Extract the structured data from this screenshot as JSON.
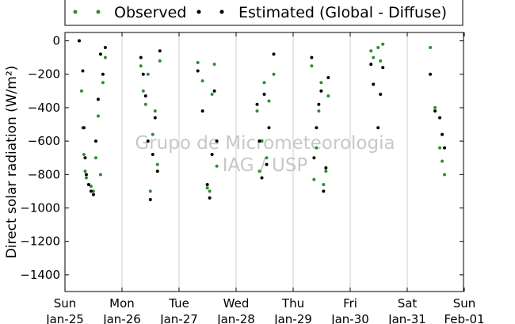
{
  "chart_data": {
    "type": "scatter",
    "title": "",
    "xlabel": "",
    "ylabel": "Direct solar radiation (W/m²)",
    "xlim": [
      "2015-01-25T00:00",
      "2015-02-01T00:00"
    ],
    "ylim": [
      -1500,
      50
    ],
    "yticks": [
      0,
      -200,
      -400,
      -600,
      -800,
      -1000,
      -1200,
      -1400
    ],
    "xtick_labels": [
      {
        "line1": "Sun",
        "line2": "Jan-25"
      },
      {
        "line1": "Mon",
        "line2": "Jan-26"
      },
      {
        "line1": "Tue",
        "line2": "Jan-27"
      },
      {
        "line1": "Wed",
        "line2": "Jan-28"
      },
      {
        "line1": "Thu",
        "line2": "Jan-29"
      },
      {
        "line1": "Fri",
        "line2": "Jan-30"
      },
      {
        "line1": "Sat",
        "line2": "Jan-31"
      },
      {
        "line1": "Sun",
        "line2": "Feb-01"
      }
    ],
    "grid": "vertical",
    "legend_position": "top",
    "watermark": [
      "Grupo de Micrometeorologia",
      "IAG / USP"
    ],
    "series": [
      {
        "name": "Observed",
        "color": "#2f8f2f",
        "marker": "dot",
        "points": [
          [
            "2015-01-25T06:00",
            0
          ],
          [
            "2015-01-25T07:00",
            -300
          ],
          [
            "2015-01-25T07:30",
            -520
          ],
          [
            "2015-01-25T08:00",
            -680
          ],
          [
            "2015-01-25T08:30",
            -780
          ],
          [
            "2015-01-25T09:00",
            -820
          ],
          [
            "2015-01-25T10:00",
            -860
          ],
          [
            "2015-01-25T11:00",
            -870
          ],
          [
            "2015-01-25T12:00",
            -900
          ],
          [
            "2015-01-25T13:00",
            -700
          ],
          [
            "2015-01-25T14:00",
            -450
          ],
          [
            "2015-01-25T15:00",
            -800
          ],
          [
            "2015-01-25T16:00",
            -250
          ],
          [
            "2015-01-25T17:00",
            -100
          ],
          [
            "2015-01-26T08:00",
            -150
          ],
          [
            "2015-01-26T09:00",
            -300
          ],
          [
            "2015-01-26T10:00",
            -380
          ],
          [
            "2015-01-26T11:00",
            -200
          ],
          [
            "2015-01-26T12:00",
            -900
          ],
          [
            "2015-01-26T13:00",
            -560
          ],
          [
            "2015-01-26T14:00",
            -420
          ],
          [
            "2015-01-26T15:00",
            -740
          ],
          [
            "2015-01-26T16:00",
            -120
          ],
          [
            "2015-01-27T08:00",
            -130
          ],
          [
            "2015-01-27T10:00",
            -240
          ],
          [
            "2015-01-27T12:00",
            -880
          ],
          [
            "2015-01-27T13:00",
            -900
          ],
          [
            "2015-01-27T14:00",
            -320
          ],
          [
            "2015-01-27T15:00",
            -140
          ],
          [
            "2015-01-27T16:00",
            -750
          ],
          [
            "2015-01-28T09:00",
            -420
          ],
          [
            "2015-01-28T10:00",
            -780
          ],
          [
            "2015-01-28T11:00",
            -600
          ],
          [
            "2015-01-28T12:00",
            -250
          ],
          [
            "2015-01-28T13:00",
            -700
          ],
          [
            "2015-01-28T14:00",
            -360
          ],
          [
            "2015-01-28T16:00",
            -200
          ],
          [
            "2015-01-29T08:00",
            -150
          ],
          [
            "2015-01-29T09:00",
            -830
          ],
          [
            "2015-01-29T10:00",
            -640
          ],
          [
            "2015-01-29T11:00",
            -420
          ],
          [
            "2015-01-29T12:00",
            -250
          ],
          [
            "2015-01-29T13:00",
            -860
          ],
          [
            "2015-01-29T14:00",
            -780
          ],
          [
            "2015-01-29T15:00",
            -330
          ],
          [
            "2015-01-30T09:00",
            -60
          ],
          [
            "2015-01-30T10:00",
            -100
          ],
          [
            "2015-01-30T12:00",
            -40
          ],
          [
            "2015-01-30T13:00",
            -120
          ],
          [
            "2015-01-30T14:00",
            -20
          ],
          [
            "2015-01-31T10:00",
            -40
          ],
          [
            "2015-01-31T12:00",
            -400
          ],
          [
            "2015-01-31T14:00",
            -640
          ],
          [
            "2015-01-31T15:00",
            -720
          ],
          [
            "2015-01-31T16:00",
            -800
          ]
        ]
      },
      {
        "name": "Estimated (Global - Diffuse)",
        "color": "#000000",
        "marker": "dot",
        "points": [
          [
            "2015-01-25T06:00",
            0
          ],
          [
            "2015-01-25T07:30",
            -180
          ],
          [
            "2015-01-25T08:00",
            -520
          ],
          [
            "2015-01-25T08:30",
            -700
          ],
          [
            "2015-01-25T09:00",
            -800
          ],
          [
            "2015-01-25T10:00",
            -860
          ],
          [
            "2015-01-25T11:00",
            -900
          ],
          [
            "2015-01-25T12:00",
            -920
          ],
          [
            "2015-01-25T13:00",
            -600
          ],
          [
            "2015-01-25T14:00",
            -350
          ],
          [
            "2015-01-25T15:00",
            -80
          ],
          [
            "2015-01-25T16:00",
            -200
          ],
          [
            "2015-01-25T17:00",
            -40
          ],
          [
            "2015-01-26T08:00",
            -100
          ],
          [
            "2015-01-26T09:00",
            -200
          ],
          [
            "2015-01-26T10:00",
            -330
          ],
          [
            "2015-01-26T11:00",
            -600
          ],
          [
            "2015-01-26T12:00",
            -950
          ],
          [
            "2015-01-26T13:00",
            -680
          ],
          [
            "2015-01-26T14:00",
            -460
          ],
          [
            "2015-01-26T15:00",
            -780
          ],
          [
            "2015-01-26T16:00",
            -60
          ],
          [
            "2015-01-27T08:00",
            -180
          ],
          [
            "2015-01-27T10:00",
            -420
          ],
          [
            "2015-01-27T12:00",
            -860
          ],
          [
            "2015-01-27T13:00",
            -940
          ],
          [
            "2015-01-27T14:00",
            -680
          ],
          [
            "2015-01-27T15:00",
            -300
          ],
          [
            "2015-01-27T16:00",
            -600
          ],
          [
            "2015-01-28T09:00",
            -380
          ],
          [
            "2015-01-28T10:00",
            -600
          ],
          [
            "2015-01-28T11:00",
            -820
          ],
          [
            "2015-01-28T12:00",
            -320
          ],
          [
            "2015-01-28T13:00",
            -740
          ],
          [
            "2015-01-28T14:00",
            -520
          ],
          [
            "2015-01-28T16:00",
            -80
          ],
          [
            "2015-01-29T08:00",
            -100
          ],
          [
            "2015-01-29T09:00",
            -700
          ],
          [
            "2015-01-29T10:00",
            -520
          ],
          [
            "2015-01-29T11:00",
            -380
          ],
          [
            "2015-01-29T12:00",
            -300
          ],
          [
            "2015-01-29T13:00",
            -900
          ],
          [
            "2015-01-29T14:00",
            -760
          ],
          [
            "2015-01-29T15:00",
            -220
          ],
          [
            "2015-01-30T09:00",
            -140
          ],
          [
            "2015-01-30T10:00",
            -260
          ],
          [
            "2015-01-30T12:00",
            -520
          ],
          [
            "2015-01-30T13:00",
            -320
          ],
          [
            "2015-01-30T14:00",
            -160
          ],
          [
            "2015-01-31T10:00",
            -200
          ],
          [
            "2015-01-31T12:00",
            -420
          ],
          [
            "2015-01-31T14:00",
            -460
          ],
          [
            "2015-01-31T15:00",
            -560
          ],
          [
            "2015-01-31T16:00",
            -640
          ]
        ]
      }
    ]
  }
}
